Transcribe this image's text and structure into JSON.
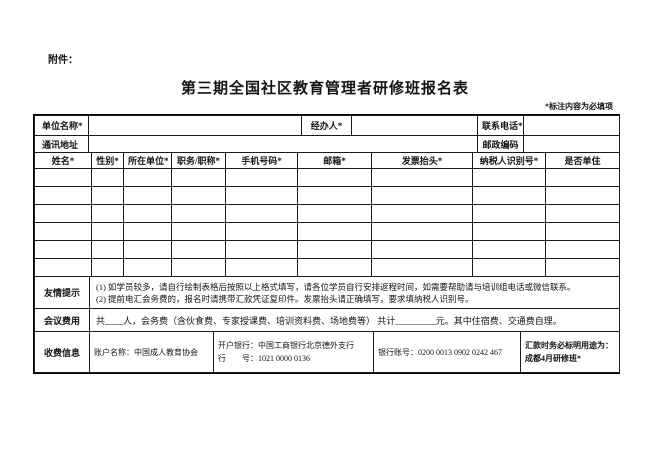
{
  "page": {
    "attachment_label": "附件：",
    "title": "第三期全国社区教育管理者研修班报名表",
    "required_note": "*标注内容为必填项"
  },
  "info": {
    "unit_name_label": "单位名称*",
    "unit_name_value": "",
    "agent_label": "经办人*",
    "agent_value": "",
    "phone_label": "联系电话*",
    "phone_value": "",
    "address_label": "通讯地址",
    "address_value": "",
    "postcode_label": "邮政编码",
    "postcode_value": ""
  },
  "roster": {
    "headers": [
      "姓名*",
      "性别*",
      "所在单位*",
      "职务/职称*",
      "手机号码*",
      "邮箱*",
      "发票抬头*",
      "纳税人识别号*",
      "是否单住"
    ],
    "empty_row_count": 6
  },
  "tips": {
    "label": "友情提示",
    "line1": "(1) 如学员较多，请自行绘制表格后按照以上格式填写，请各位学员自行安排返程时间，如需要帮助请与培训组电话或微信联系。",
    "line2": "(2) 提前电汇会务费的，报名时请携带汇款凭证复印件。发票抬头请正确填写，要求填纳税人识别号。"
  },
  "fee": {
    "label": "会议费用",
    "text": "共____人，会务费（含伙食费、专家授课费、培训资料费、场地费等）  共计_________元。其中住宿费、交通费自理。"
  },
  "payment": {
    "label": "收费信息",
    "account_name": "账户名称：中国成人教育协会",
    "bank_line1": "开户银行：中国工商银行北京德外支行",
    "bank_line2": "行　　号：1021 0000 0136",
    "account_no": "银行账号：0200 0013 0902 0242 467",
    "purpose_line1": "汇款时务必标明用途为：",
    "purpose_line2": "成都4月研修班*"
  }
}
